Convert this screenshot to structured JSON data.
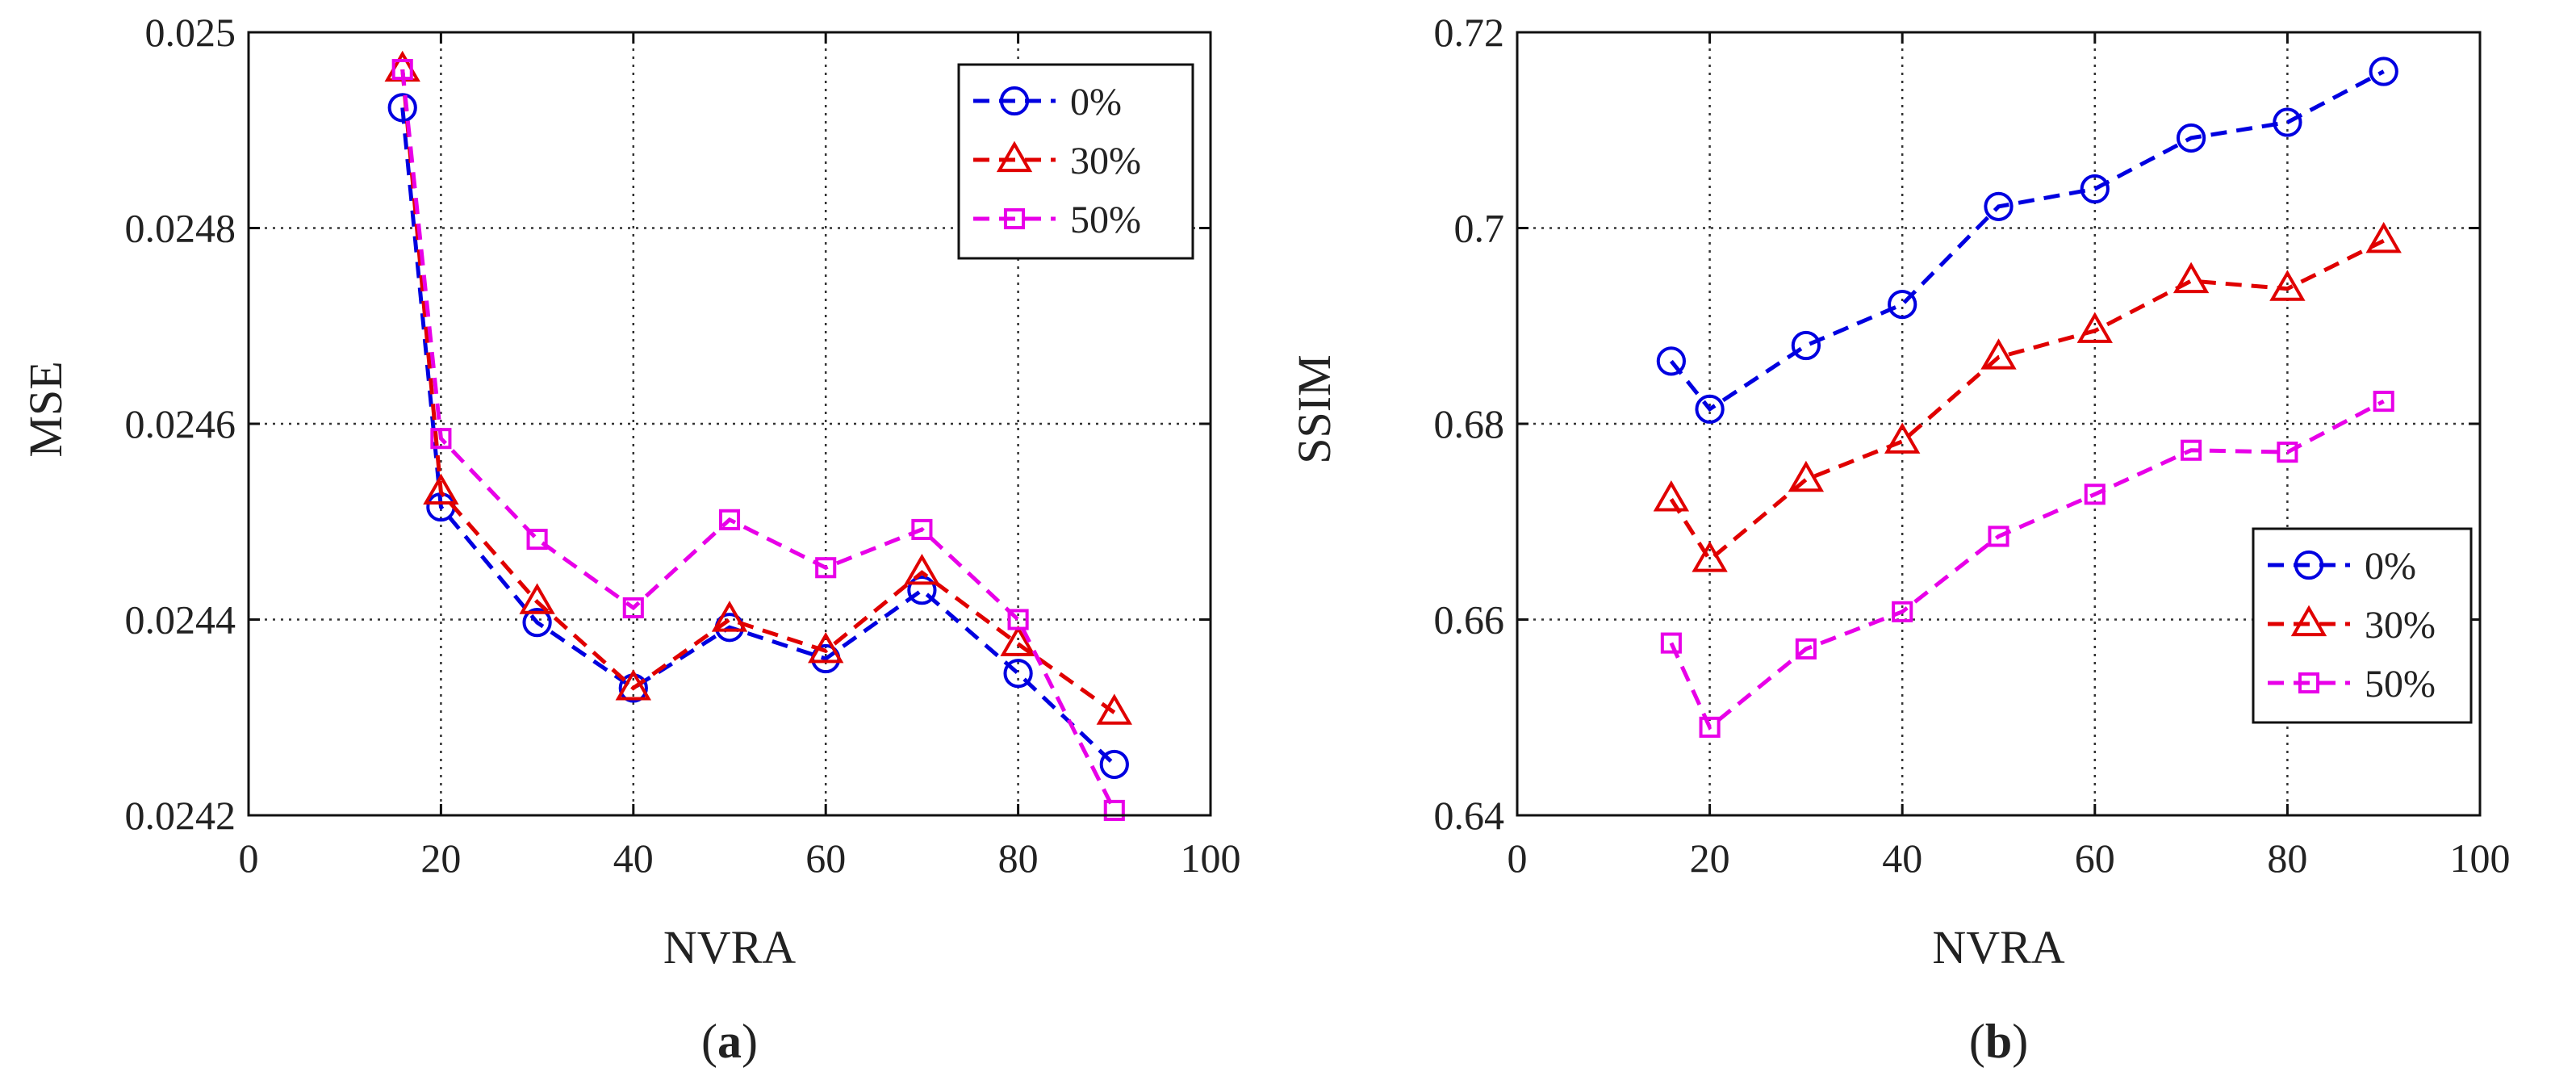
{
  "chart_data": [
    {
      "type": "line",
      "panel_label": {
        "open": "(",
        "letter": "a",
        "close": ")"
      },
      "xlabel": "NVRA",
      "ylabel": "MSE",
      "xlim": [
        0,
        100
      ],
      "ylim": [
        0.0242,
        0.025
      ],
      "xticks": [
        0,
        20,
        40,
        60,
        80,
        100
      ],
      "yticks": [
        0.0242,
        0.0244,
        0.0246,
        0.0248,
        0.025
      ],
      "ytick_labels": [
        "0.0242",
        "0.0244",
        "0.0246",
        "0.0248",
        "0.025"
      ],
      "grid": true,
      "legend_position": "top-right",
      "x": [
        16,
        20,
        30,
        40,
        50,
        60,
        70,
        80,
        90
      ],
      "series": [
        {
          "name": "0%",
          "color": "#0000e0",
          "marker": "circle",
          "values": [
            0.024923,
            0.024515,
            0.024397,
            0.02433,
            0.024392,
            0.02436,
            0.02443,
            0.024345,
            0.024252
          ]
        },
        {
          "name": "30%",
          "color": "#e00000",
          "marker": "triangle",
          "values": [
            0.024962,
            0.02453,
            0.024418,
            0.02433,
            0.0244,
            0.024368,
            0.024448,
            0.024375,
            0.024305
          ]
        },
        {
          "name": "50%",
          "color": "#e800e8",
          "marker": "square",
          "values": [
            0.024962,
            0.024585,
            0.024482,
            0.024412,
            0.024502,
            0.024453,
            0.024492,
            0.0244,
            0.024205
          ]
        }
      ]
    },
    {
      "type": "line",
      "panel_label": {
        "open": "(",
        "letter": "b",
        "close": ")"
      },
      "xlabel": "NVRA",
      "ylabel": "SSIM",
      "xlim": [
        0,
        100
      ],
      "ylim": [
        0.64,
        0.72
      ],
      "xticks": [
        0,
        20,
        40,
        60,
        80,
        100
      ],
      "yticks": [
        0.64,
        0.66,
        0.68,
        0.7,
        0.72
      ],
      "ytick_labels": [
        "0.64",
        "0.66",
        "0.68",
        "0.7",
        "0.72"
      ],
      "grid": true,
      "legend_position": "bottom-right",
      "x": [
        16,
        20,
        30,
        40,
        50,
        60,
        70,
        80,
        90
      ],
      "series": [
        {
          "name": "0%",
          "color": "#0000e0",
          "marker": "circle",
          "values": [
            0.6864,
            0.6815,
            0.688,
            0.6922,
            0.7022,
            0.704,
            0.7092,
            0.7108,
            0.716
          ]
        },
        {
          "name": "30%",
          "color": "#e00000",
          "marker": "triangle",
          "values": [
            0.6723,
            0.6661,
            0.6743,
            0.6782,
            0.6868,
            0.6895,
            0.6946,
            0.6938,
            0.6987
          ]
        },
        {
          "name": "50%",
          "color": "#e800e8",
          "marker": "square",
          "values": [
            0.6576,
            0.649,
            0.657,
            0.6608,
            0.6685,
            0.6728,
            0.6773,
            0.6771,
            0.6823
          ]
        }
      ]
    }
  ]
}
